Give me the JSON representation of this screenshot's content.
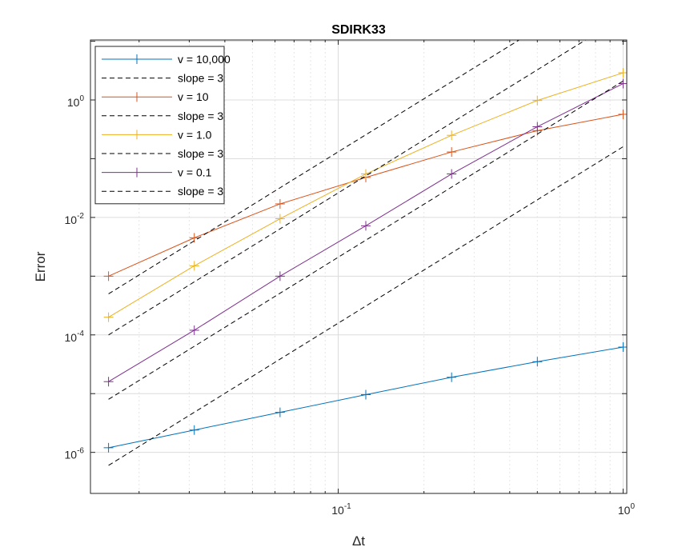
{
  "chart_data": {
    "type": "line",
    "title": "SDIRK33",
    "xlabel": "Δt",
    "ylabel": "Error",
    "xscale": "log",
    "yscale": "log",
    "xlim": [
      0.0135,
      1.03
    ],
    "ylim": [
      2e-07,
      10.5
    ],
    "grid": true,
    "minor_grid": true,
    "legend_location": "top-left",
    "x_ticks": [
      {
        "base": "10",
        "exp": "-1",
        "value": 0.1
      },
      {
        "base": "10",
        "exp": "0",
        "value": 1
      }
    ],
    "y_ticks": [
      {
        "base": "10",
        "exp": "-6",
        "value": 1e-06
      },
      {
        "base": "10",
        "exp": "-4",
        "value": 0.0001
      },
      {
        "base": "10",
        "exp": "-2",
        "value": 0.01
      },
      {
        "base": "10",
        "exp": "0",
        "value": 1
      }
    ],
    "x": [
      0.015625,
      0.03125,
      0.0625,
      0.125,
      0.25,
      0.5,
      1.0
    ],
    "series": [
      {
        "name": "v = 10,000",
        "color": "#0072BD",
        "marker": "+",
        "style": "solid",
        "values": [
          1.2e-06,
          2.4e-06,
          4.8e-06,
          9.6e-06,
          1.9e-05,
          3.5e-05,
          6.2e-05
        ]
      },
      {
        "name": "slope = 3",
        "color": "#000000",
        "marker": "none",
        "style": "dashed",
        "x": [
          0.015625,
          1.0
        ],
        "values": [
          6e-07,
          0.16
        ]
      },
      {
        "name": "v = 10",
        "color": "#D95319",
        "marker": "+",
        "style": "solid",
        "values": [
          0.001,
          0.0045,
          0.017,
          0.048,
          0.13,
          0.3,
          0.57
        ]
      },
      {
        "name": "slope = 3",
        "color": "#000000",
        "marker": "none",
        "style": "dashed",
        "x": [
          0.015625,
          0.54
        ],
        "values": [
          0.0005,
          20.6
        ]
      },
      {
        "name": "v = 1.0",
        "color": "#EDB120",
        "marker": "+",
        "style": "solid",
        "values": [
          0.0002,
          0.0015,
          0.0095,
          0.055,
          0.25,
          0.98,
          2.9
        ]
      },
      {
        "name": "slope = 3",
        "color": "#000000",
        "marker": "none",
        "style": "dashed",
        "x": [
          0.015625,
          0.75
        ],
        "values": [
          0.0001,
          11.0
        ]
      },
      {
        "name": "v = 0.1",
        "color": "#7E2F8E",
        "marker": "+",
        "style": "solid",
        "values": [
          1.6e-05,
          0.00012,
          0.001,
          0.0072,
          0.055,
          0.35,
          1.9
        ]
      },
      {
        "name": "slope = 3",
        "color": "#000000",
        "marker": "none",
        "style": "dashed",
        "x": [
          0.015625,
          1.0
        ],
        "values": [
          8e-06,
          2.1
        ]
      }
    ]
  }
}
